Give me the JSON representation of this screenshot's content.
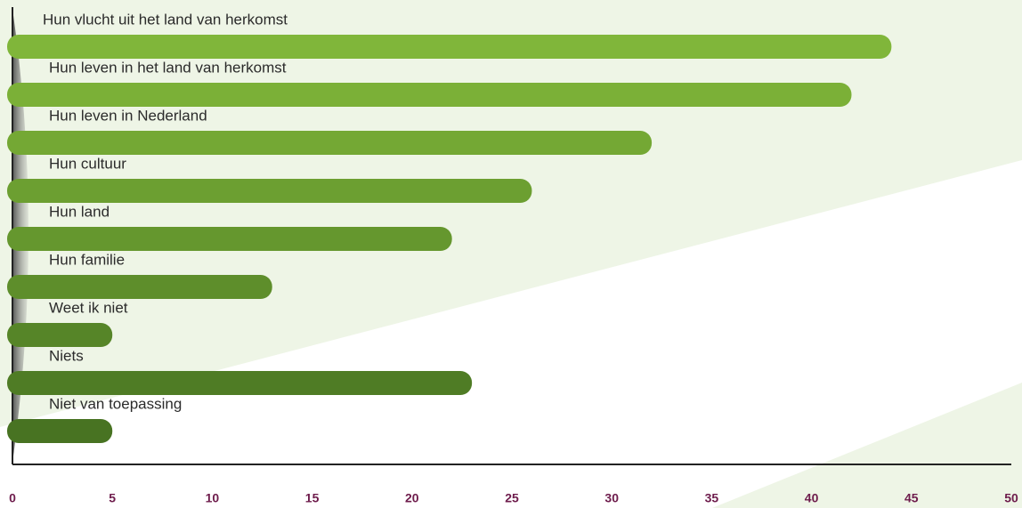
{
  "chart_data": {
    "type": "bar",
    "orientation": "horizontal",
    "categories": [
      "Hun vlucht uit het land van herkomst",
      "Hun leven in het land van herkomst",
      "Hun leven in Nederland",
      "Hun cultuur",
      "Hun land",
      "Hun familie",
      "Weet ik niet",
      "Niets",
      "Niet van toepassing"
    ],
    "values": [
      44,
      42,
      32,
      26,
      22,
      13,
      5,
      23,
      5
    ],
    "colors": [
      "#80b63a",
      "#7bb037",
      "#74a834",
      "#6c9f31",
      "#65972e",
      "#5e8e2b",
      "#568528",
      "#4f7c25",
      "#487322"
    ],
    "xlim": [
      0,
      50
    ],
    "xticks": [
      0,
      5,
      10,
      15,
      20,
      25,
      30,
      35,
      40,
      45,
      50
    ]
  }
}
